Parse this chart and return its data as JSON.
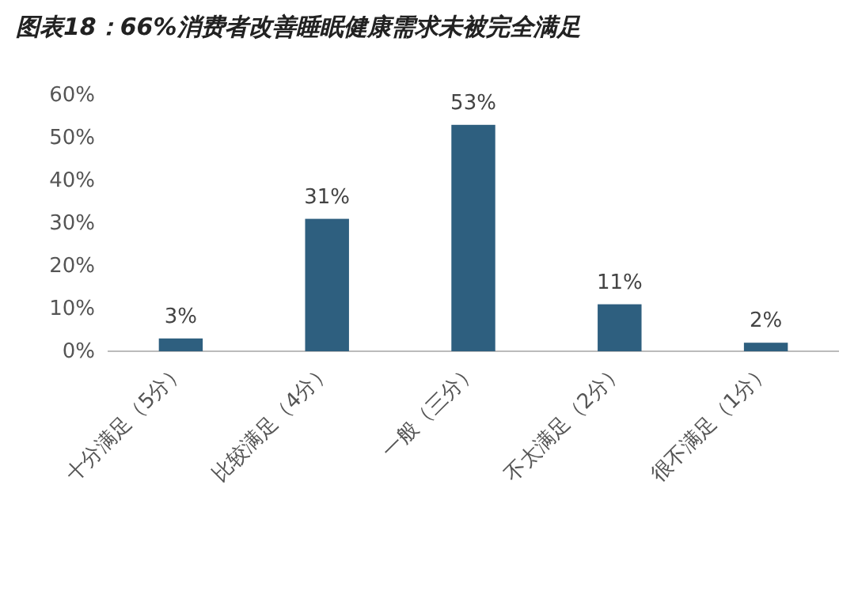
{
  "chart_data": {
    "type": "bar",
    "title": "图表18：66%消费者改善睡眠健康需求未被完全满足",
    "categories": [
      "十分满足（5分）",
      "比较满足（4分）",
      "一般（三分）",
      "不太满足（2分）",
      "很不满足（1分）"
    ],
    "values": [
      3,
      31,
      53,
      11,
      2
    ],
    "value_labels": [
      "3%",
      "31%",
      "53%",
      "11%",
      "2%"
    ],
    "color": "#2e5f7f",
    "ylim": [
      0,
      60
    ],
    "yticks": [
      {
        "value": 0,
        "label": "0%"
      },
      {
        "value": 10,
        "label": "10%"
      },
      {
        "value": 20,
        "label": "20%"
      },
      {
        "value": 30,
        "label": "30%"
      },
      {
        "value": 40,
        "label": "40%"
      },
      {
        "value": 50,
        "label": "50%"
      },
      {
        "value": 60,
        "label": "60%"
      }
    ],
    "grid": false
  }
}
